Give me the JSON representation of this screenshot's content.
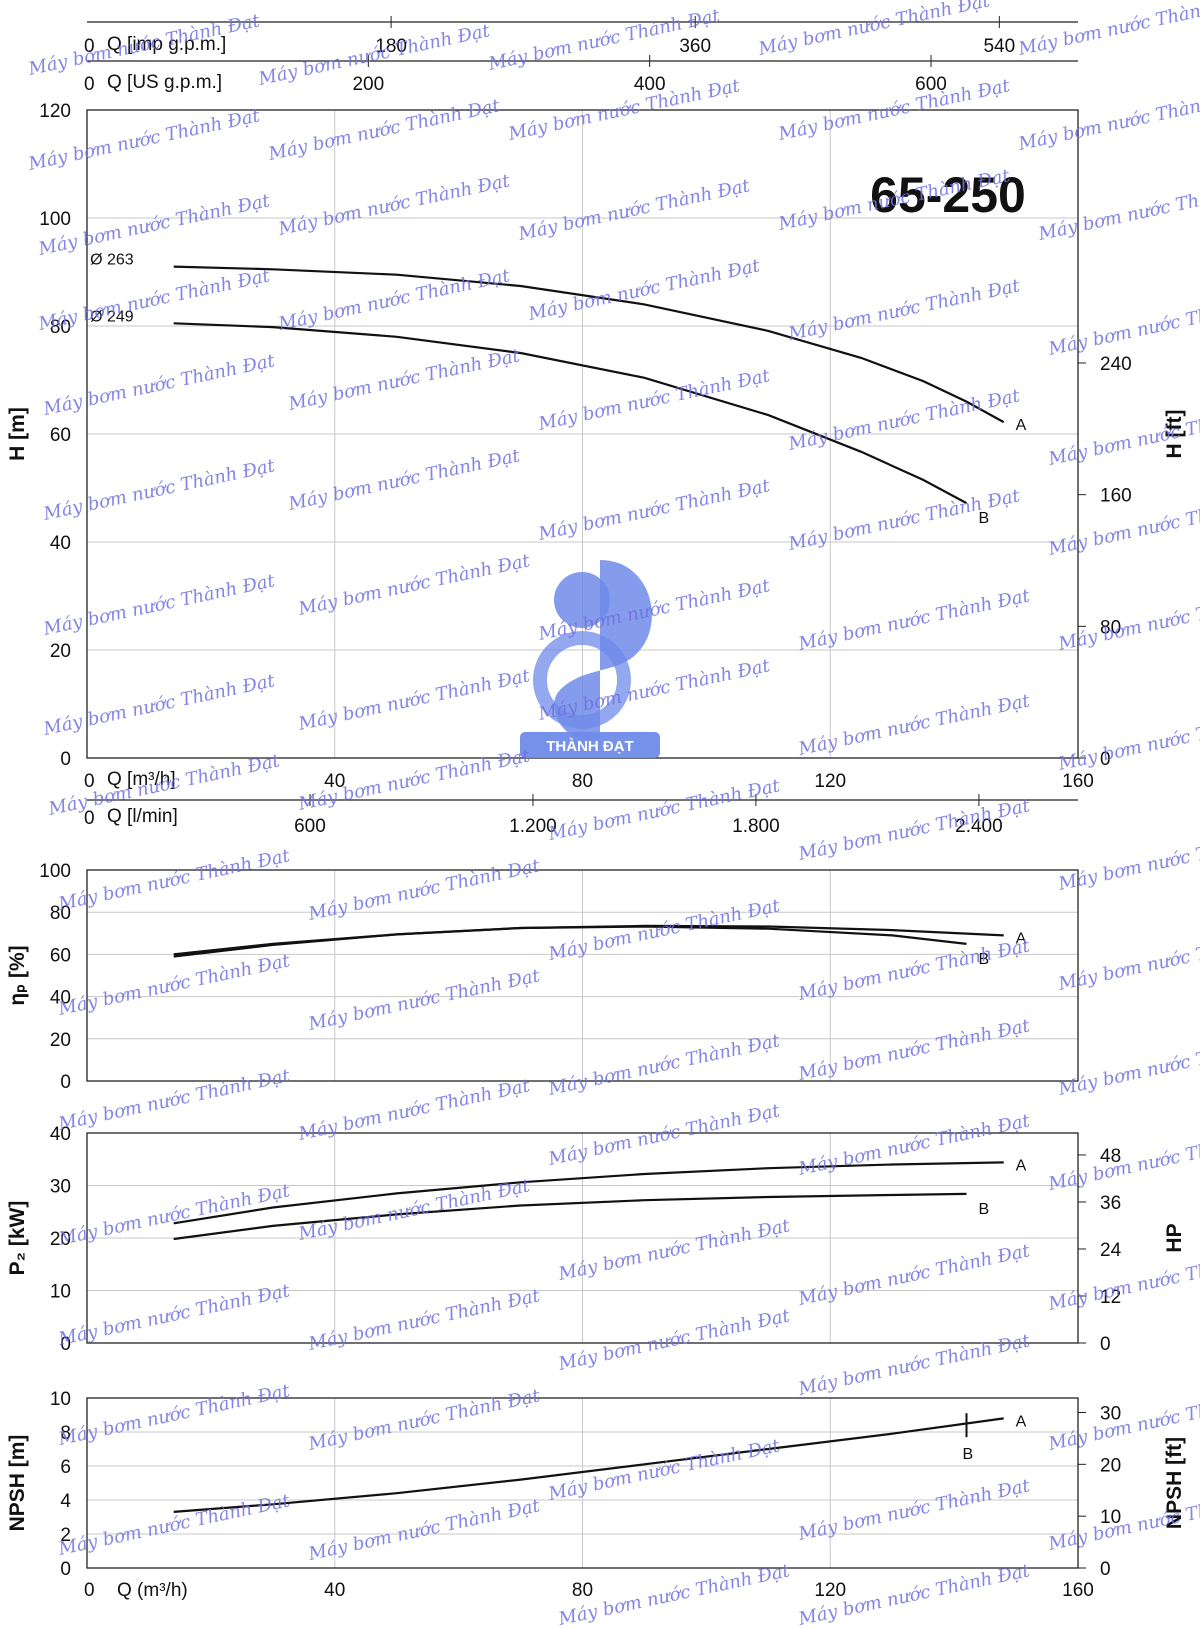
{
  "model_title": "65-250",
  "watermark_text": "Máy bơm nước Thành Đạt",
  "logo_text": "THÀNH ĐẠT",
  "colors": {
    "watermark": "#6f6fe0",
    "logo": "#6f8be8",
    "curves": "#111111",
    "grid": "#c8c8c8"
  },
  "top_scales": {
    "imp": {
      "label": "Q [imp g.p.m.]",
      "zero": "0",
      "ticks": [
        {
          "value": 180,
          "label": "180"
        },
        {
          "value": 360,
          "label": "360"
        },
        {
          "value": 540,
          "label": "540"
        }
      ]
    },
    "us": {
      "label": "Q [US g.p.m.]",
      "zero": "0",
      "ticks": [
        {
          "value": 200,
          "label": "200"
        },
        {
          "value": 400,
          "label": "400"
        },
        {
          "value": 600,
          "label": "600"
        }
      ]
    }
  },
  "mid_scales": {
    "m3h": {
      "label": "Q [m³/h]",
      "zero": "0",
      "ticks": [
        {
          "value": 40,
          "label": "40"
        },
        {
          "value": 80,
          "label": "80"
        },
        {
          "value": 120,
          "label": "120"
        },
        {
          "value": 160,
          "label": "160"
        }
      ]
    },
    "lmin": {
      "label": "Q [l/min]",
      "zero": "0",
      "ticks": [
        {
          "value": 600,
          "label": "600"
        },
        {
          "value": 1200,
          "label": "1.200"
        },
        {
          "value": 1800,
          "label": "1.800"
        },
        {
          "value": 2400,
          "label": "2.400"
        }
      ]
    }
  },
  "bottom_scale": {
    "label": "Q (m³/h)",
    "zero": "0",
    "ticks": [
      {
        "value": 40,
        "label": "40"
      },
      {
        "value": 80,
        "label": "80"
      },
      {
        "value": 120,
        "label": "120"
      },
      {
        "value": 160,
        "label": "160"
      }
    ]
  },
  "chart_data": [
    {
      "type": "line",
      "id": "head",
      "ylabel": "H [m]",
      "ylabel_right": "H [ft]",
      "xlim": [
        0,
        160
      ],
      "ylim": [
        0,
        120
      ],
      "yticks": [
        0,
        20,
        40,
        60,
        80,
        100,
        120
      ],
      "ylim_right": [
        0,
        393.7
      ],
      "yticks_right": [
        0,
        80,
        160,
        240
      ],
      "grid": true,
      "series": [
        {
          "name": "A",
          "annotation": "Ø 263",
          "x": [
            14,
            30,
            50,
            70,
            90,
            110,
            125,
            135,
            142,
            148
          ],
          "y": [
            91.0,
            90.5,
            89.5,
            87.4,
            84.0,
            79.1,
            74.1,
            69.8,
            66.0,
            62.2
          ]
        },
        {
          "name": "B",
          "annotation": "Ø 249",
          "x": [
            14,
            30,
            50,
            70,
            90,
            110,
            125,
            135,
            142
          ],
          "y": [
            80.5,
            79.8,
            78.0,
            75.0,
            70.4,
            63.5,
            56.7,
            51.5,
            47.2
          ]
        }
      ]
    },
    {
      "type": "line",
      "id": "efficiency",
      "ylabel": "ηₚ [%]",
      "xlim": [
        0,
        160
      ],
      "ylim": [
        0,
        100
      ],
      "yticks": [
        0,
        20,
        40,
        60,
        80,
        100
      ],
      "grid": true,
      "series": [
        {
          "name": "A",
          "x": [
            14,
            30,
            50,
            70,
            90,
            110,
            130,
            148
          ],
          "y": [
            59,
            64.5,
            69.5,
            72.5,
            73.5,
            73.2,
            71.5,
            69
          ]
        },
        {
          "name": "B",
          "x": [
            14,
            30,
            50,
            70,
            90,
            110,
            130,
            142
          ],
          "y": [
            60,
            65,
            69.5,
            72.5,
            73.2,
            72.2,
            69,
            65
          ]
        }
      ]
    },
    {
      "type": "line",
      "id": "power",
      "ylabel": "P₂ [kW]",
      "ylabel_right": "HP",
      "xlim": [
        0,
        160
      ],
      "ylim": [
        0,
        40
      ],
      "yticks": [
        0,
        10,
        20,
        30,
        40
      ],
      "ylim_right": [
        0,
        53.6
      ],
      "yticks_right": [
        0,
        12,
        24,
        36,
        48
      ],
      "grid": true,
      "series": [
        {
          "name": "A",
          "x": [
            14,
            30,
            50,
            70,
            90,
            110,
            130,
            148
          ],
          "y": [
            22.8,
            25.8,
            28.5,
            30.6,
            32.2,
            33.3,
            34.0,
            34.4
          ]
        },
        {
          "name": "B",
          "x": [
            14,
            30,
            50,
            70,
            90,
            110,
            130,
            142
          ],
          "y": [
            19.8,
            22.3,
            24.5,
            26.2,
            27.2,
            27.8,
            28.2,
            28.4
          ]
        }
      ]
    },
    {
      "type": "line",
      "id": "npsh",
      "ylabel": "NPSH [m]",
      "ylabel_right": "NPSH [ft]",
      "xlim": [
        0,
        160
      ],
      "ylim": [
        0,
        10
      ],
      "yticks": [
        0,
        2,
        4,
        6,
        8,
        10
      ],
      "ylim_right": [
        0,
        32.8
      ],
      "yticks_right": [
        0,
        10,
        20,
        30
      ],
      "grid": true,
      "series": [
        {
          "name": "A",
          "x": [
            14,
            30,
            50,
            70,
            90,
            110,
            130,
            148
          ],
          "y": [
            3.3,
            3.75,
            4.4,
            5.2,
            6.1,
            7.0,
            7.9,
            8.8
          ]
        }
      ],
      "annotations": [
        {
          "label": "B",
          "x": 142,
          "y": 8.4
        }
      ]
    }
  ]
}
